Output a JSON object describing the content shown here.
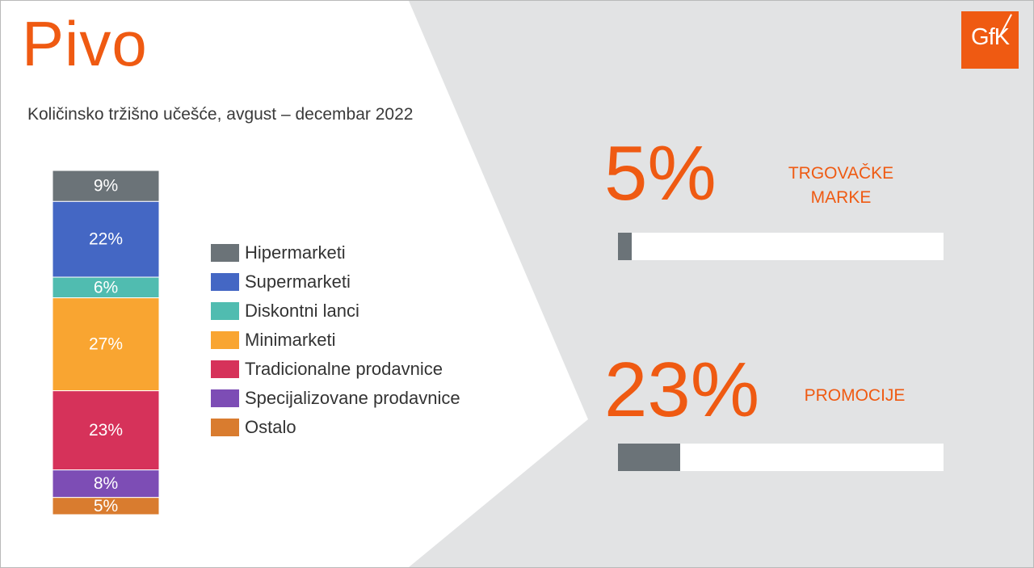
{
  "title": "Pivo",
  "subtitle": "Količinsko tržišno učešće, avgust – decembar 2022",
  "logo": {
    "text": "GfK",
    "color": "#ef5a12"
  },
  "colors": {
    "accent": "#ef5a12",
    "panel": "#e2e3e4",
    "bar_fill": "#6b7378"
  },
  "chart_data": {
    "type": "bar",
    "stacked": true,
    "unit": "%",
    "series": [
      {
        "name": "Hipermarketi",
        "value": 9,
        "label": "9%",
        "color": "#6b7378"
      },
      {
        "name": "Supermarketi",
        "value": 22,
        "label": "22%",
        "color": "#4467c4"
      },
      {
        "name": "Diskontni lanci",
        "value": 6,
        "label": "6%",
        "color": "#50bcb0"
      },
      {
        "name": "Minimarketi",
        "value": 27,
        "label": "27%",
        "color": "#f9a531"
      },
      {
        "name": "Tradicionalne prodavnice",
        "value": 23,
        "label": "23%",
        "color": "#d6325a"
      },
      {
        "name": "Specijalizovane prodavnice",
        "value": 8,
        "label": "8%",
        "color": "#7d4db5"
      },
      {
        "name": "Ostalo",
        "value": 5,
        "label": "5%",
        "color": "#d97c2f"
      }
    ],
    "legend_position": "right"
  },
  "kpis": [
    {
      "value": "5%",
      "label_lines": [
        "TRGOVAČKE",
        "MARKE"
      ],
      "share": 0.05
    },
    {
      "value": "23%",
      "label_lines": [
        "PROMOCIJE"
      ],
      "share": 0.23
    }
  ]
}
